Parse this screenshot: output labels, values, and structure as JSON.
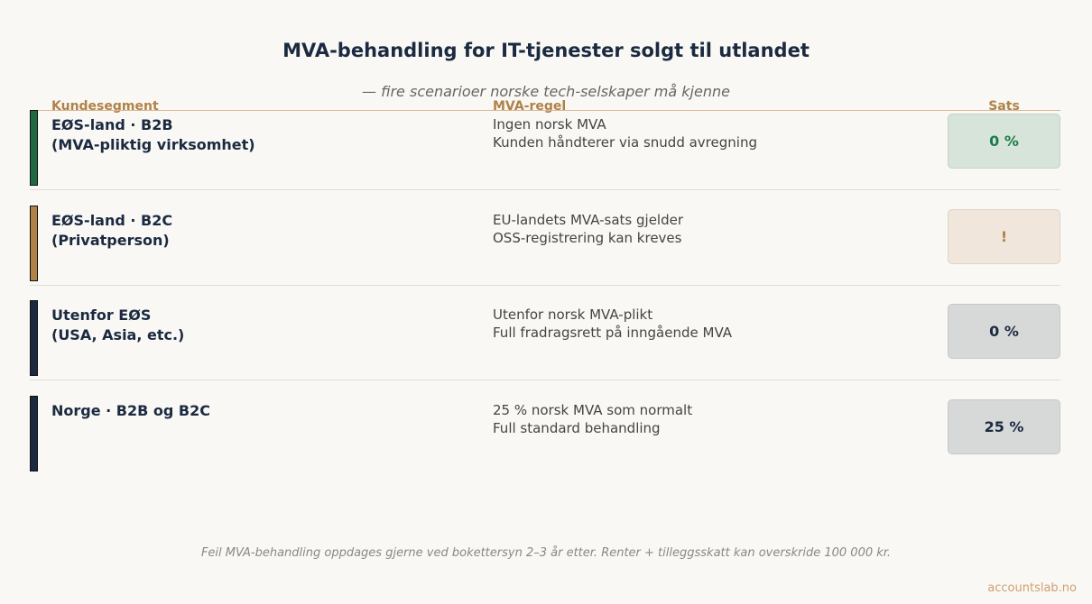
{
  "title": "MVA-behandling for IT-tjenester solgt til utlandet",
  "subtitle": "— fire scenarioer norske tech-selskaper må kjenne",
  "columns": {
    "segment": "Kundesegment",
    "rule": "MVA-regel",
    "rate": "Sats"
  },
  "rows": [
    {
      "segment_line1": "EØS-land · B2B",
      "segment_line2": "(MVA-pliktig virksomhet)",
      "rule_line1": "Ingen norsk MVA",
      "rule_line2": "Kunden håndterer via snudd avregning",
      "rate": "0 %",
      "bar_color": "#1e6b43",
      "badge_bg": "#d6e4da",
      "badge_color": "#1e7a48"
    },
    {
      "segment_line1": "EØS-land · B2C",
      "segment_line2": "(Privatperson)",
      "rule_line1": "EU-landets MVA-sats gjelder",
      "rule_line2": "OSS-registrering kan kreves",
      "rate": "!",
      "bar_color": "#b08248",
      "badge_bg": "#f0e6db",
      "badge_color": "#b08248"
    },
    {
      "segment_line1": "Utenfor EØS",
      "segment_line2": "(USA, Asia, etc.)",
      "rule_line1": "Utenfor norsk MVA-plikt",
      "rule_line2": "Full fradragsrett på inngående MVA",
      "rate": "0 %",
      "bar_color": "#1b2a40",
      "badge_bg": "#d7d9d8",
      "badge_color": "#1b2a40"
    },
    {
      "segment_line1": "Norge · B2B og B2C",
      "segment_line2": "",
      "rule_line1": "25 % norsk MVA som normalt",
      "rule_line2": "Full standard behandling",
      "rate": "25 %",
      "bar_color": "#1b2a40",
      "badge_bg": "#d7d9d8",
      "badge_color": "#1b2a40"
    }
  ],
  "footnote": "Feil MVA-behandling oppdages gjerne ved bokettersyn 2–3 år etter. Renter + tilleggsskatt kan overskride 100 000 kr.",
  "brand": "accountslab.no"
}
